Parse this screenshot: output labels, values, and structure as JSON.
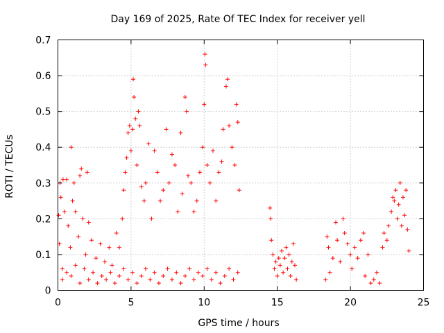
{
  "chart_data": {
    "type": "scatter",
    "title": "Day 169 of 2025, Rate Of TEC Index for receiver yell",
    "xlabel": "GPS time / hours",
    "ylabel": "ROTI / TECUs",
    "xlim": [
      0,
      25
    ],
    "ylim": [
      0,
      0.7
    ],
    "xticks": [
      0,
      5,
      10,
      15,
      20,
      25
    ],
    "yticks": [
      0,
      0.1,
      0.2,
      0.3,
      0.4,
      0.5,
      0.6,
      0.7
    ],
    "xtick_labels": [
      "0",
      "5",
      "10",
      "15",
      "20",
      "25"
    ],
    "ytick_labels": [
      "0",
      "0.1",
      "0.2",
      "0.3",
      "0.4",
      "0.5",
      "0.6",
      "0.7"
    ],
    "grid": true,
    "marker": "+",
    "color": "#ff0000",
    "series": [
      {
        "name": "ROTI",
        "points": [
          [
            0.05,
            0.21
          ],
          [
            0.1,
            0.13
          ],
          [
            0.15,
            0.3
          ],
          [
            0.2,
            0.26
          ],
          [
            0.3,
            0.06
          ],
          [
            0.35,
            0.31
          ],
          [
            0.45,
            0.22
          ],
          [
            0.6,
            0.31
          ],
          [
            0.7,
            0.18
          ],
          [
            0.85,
            0.12
          ],
          [
            0.9,
            0.4
          ],
          [
            1.0,
            0.25
          ],
          [
            1.1,
            0.3
          ],
          [
            1.2,
            0.22
          ],
          [
            1.4,
            0.15
          ],
          [
            1.5,
            0.32
          ],
          [
            1.6,
            0.34
          ],
          [
            1.7,
            0.2
          ],
          [
            1.9,
            0.1
          ],
          [
            2.0,
            0.33
          ],
          [
            2.1,
            0.19
          ],
          [
            2.3,
            0.14
          ],
          [
            2.6,
            0.09
          ],
          [
            2.9,
            0.13
          ],
          [
            3.2,
            0.08
          ],
          [
            3.5,
            0.12
          ],
          [
            3.7,
            0.07
          ],
          [
            4.0,
            0.16
          ],
          [
            4.2,
            0.12
          ],
          [
            4.4,
            0.2
          ],
          [
            4.5,
            0.28
          ],
          [
            4.6,
            0.33
          ],
          [
            4.7,
            0.37
          ],
          [
            4.8,
            0.44
          ],
          [
            4.9,
            0.46
          ],
          [
            5.0,
            0.39
          ],
          [
            5.1,
            0.45
          ],
          [
            5.15,
            0.59
          ],
          [
            5.2,
            0.54
          ],
          [
            5.3,
            0.48
          ],
          [
            5.4,
            0.35
          ],
          [
            5.5,
            0.5
          ],
          [
            5.6,
            0.46
          ],
          [
            5.7,
            0.29
          ],
          [
            5.9,
            0.25
          ],
          [
            6.0,
            0.3
          ],
          [
            6.2,
            0.41
          ],
          [
            6.4,
            0.2
          ],
          [
            6.6,
            0.39
          ],
          [
            6.8,
            0.33
          ],
          [
            7.0,
            0.25
          ],
          [
            7.2,
            0.28
          ],
          [
            7.4,
            0.45
          ],
          [
            7.6,
            0.3
          ],
          [
            7.8,
            0.38
          ],
          [
            8.0,
            0.35
          ],
          [
            8.2,
            0.22
          ],
          [
            8.4,
            0.44
          ],
          [
            8.5,
            0.27
          ],
          [
            8.7,
            0.54
          ],
          [
            8.8,
            0.5
          ],
          [
            8.9,
            0.32
          ],
          [
            9.1,
            0.3
          ],
          [
            9.3,
            0.22
          ],
          [
            9.5,
            0.25
          ],
          [
            9.7,
            0.33
          ],
          [
            9.9,
            0.4
          ],
          [
            10.0,
            0.52
          ],
          [
            10.05,
            0.66
          ],
          [
            10.1,
            0.63
          ],
          [
            10.2,
            0.35
          ],
          [
            10.4,
            0.3
          ],
          [
            10.6,
            0.39
          ],
          [
            10.8,
            0.25
          ],
          [
            11.0,
            0.33
          ],
          [
            11.2,
            0.36
          ],
          [
            11.3,
            0.45
          ],
          [
            11.5,
            0.57
          ],
          [
            11.6,
            0.59
          ],
          [
            11.7,
            0.46
          ],
          [
            11.9,
            0.4
          ],
          [
            12.1,
            0.35
          ],
          [
            12.2,
            0.52
          ],
          [
            12.3,
            0.47
          ],
          [
            12.4,
            0.28
          ],
          [
            0.3,
            0.03
          ],
          [
            0.6,
            0.05
          ],
          [
            0.9,
            0.04
          ],
          [
            1.2,
            0.07
          ],
          [
            1.5,
            0.02
          ],
          [
            1.8,
            0.06
          ],
          [
            2.1,
            0.03
          ],
          [
            2.4,
            0.05
          ],
          [
            2.7,
            0.02
          ],
          [
            3.0,
            0.04
          ],
          [
            3.3,
            0.03
          ],
          [
            3.6,
            0.05
          ],
          [
            3.9,
            0.02
          ],
          [
            4.2,
            0.04
          ],
          [
            4.5,
            0.06
          ],
          [
            4.8,
            0.03
          ],
          [
            5.1,
            0.05
          ],
          [
            5.4,
            0.02
          ],
          [
            5.7,
            0.04
          ],
          [
            6.0,
            0.06
          ],
          [
            6.3,
            0.03
          ],
          [
            6.6,
            0.05
          ],
          [
            6.9,
            0.02
          ],
          [
            7.2,
            0.04
          ],
          [
            7.5,
            0.06
          ],
          [
            7.8,
            0.03
          ],
          [
            8.1,
            0.05
          ],
          [
            8.4,
            0.02
          ],
          [
            8.7,
            0.04
          ],
          [
            9.0,
            0.06
          ],
          [
            9.3,
            0.03
          ],
          [
            9.6,
            0.05
          ],
          [
            9.9,
            0.04
          ],
          [
            10.2,
            0.06
          ],
          [
            10.5,
            0.03
          ],
          [
            10.8,
            0.05
          ],
          [
            11.1,
            0.02
          ],
          [
            11.4,
            0.04
          ],
          [
            11.7,
            0.06
          ],
          [
            12.0,
            0.03
          ],
          [
            12.3,
            0.05
          ],
          [
            14.5,
            0.23
          ],
          [
            14.55,
            0.2
          ],
          [
            14.6,
            0.14
          ],
          [
            14.7,
            0.1
          ],
          [
            14.8,
            0.06
          ],
          [
            14.9,
            0.08
          ],
          [
            15.0,
            0.04
          ],
          [
            15.1,
            0.09
          ],
          [
            15.2,
            0.07
          ],
          [
            15.3,
            0.11
          ],
          [
            15.4,
            0.05
          ],
          [
            15.5,
            0.09
          ],
          [
            15.6,
            0.12
          ],
          [
            15.7,
            0.06
          ],
          [
            15.8,
            0.1
          ],
          [
            15.9,
            0.04
          ],
          [
            16.0,
            0.08
          ],
          [
            16.1,
            0.13
          ],
          [
            16.2,
            0.07
          ],
          [
            16.3,
            0.03
          ],
          [
            18.3,
            0.03
          ],
          [
            18.4,
            0.15
          ],
          [
            18.5,
            0.12
          ],
          [
            18.6,
            0.05
          ],
          [
            18.8,
            0.09
          ],
          [
            19.0,
            0.19
          ],
          [
            19.1,
            0.14
          ],
          [
            19.3,
            0.08
          ],
          [
            19.5,
            0.2
          ],
          [
            19.6,
            0.16
          ],
          [
            19.8,
            0.13
          ],
          [
            20.0,
            0.1
          ],
          [
            20.1,
            0.06
          ],
          [
            20.3,
            0.12
          ],
          [
            20.5,
            0.09
          ],
          [
            20.7,
            0.14
          ],
          [
            20.9,
            0.16
          ],
          [
            21.0,
            0.04
          ],
          [
            21.2,
            0.1
          ],
          [
            21.4,
            0.02
          ],
          [
            21.6,
            0.03
          ],
          [
            21.8,
            0.05
          ],
          [
            22.0,
            0.02
          ],
          [
            22.2,
            0.12
          ],
          [
            22.3,
            0.16
          ],
          [
            22.5,
            0.14
          ],
          [
            22.6,
            0.18
          ],
          [
            22.8,
            0.22
          ],
          [
            22.9,
            0.26
          ],
          [
            23.0,
            0.25
          ],
          [
            23.1,
            0.28
          ],
          [
            23.2,
            0.2
          ],
          [
            23.3,
            0.24
          ],
          [
            23.4,
            0.3
          ],
          [
            23.5,
            0.18
          ],
          [
            23.6,
            0.26
          ],
          [
            23.7,
            0.21
          ],
          [
            23.8,
            0.28
          ],
          [
            23.9,
            0.17
          ],
          [
            24.0,
            0.11
          ]
        ]
      }
    ]
  }
}
